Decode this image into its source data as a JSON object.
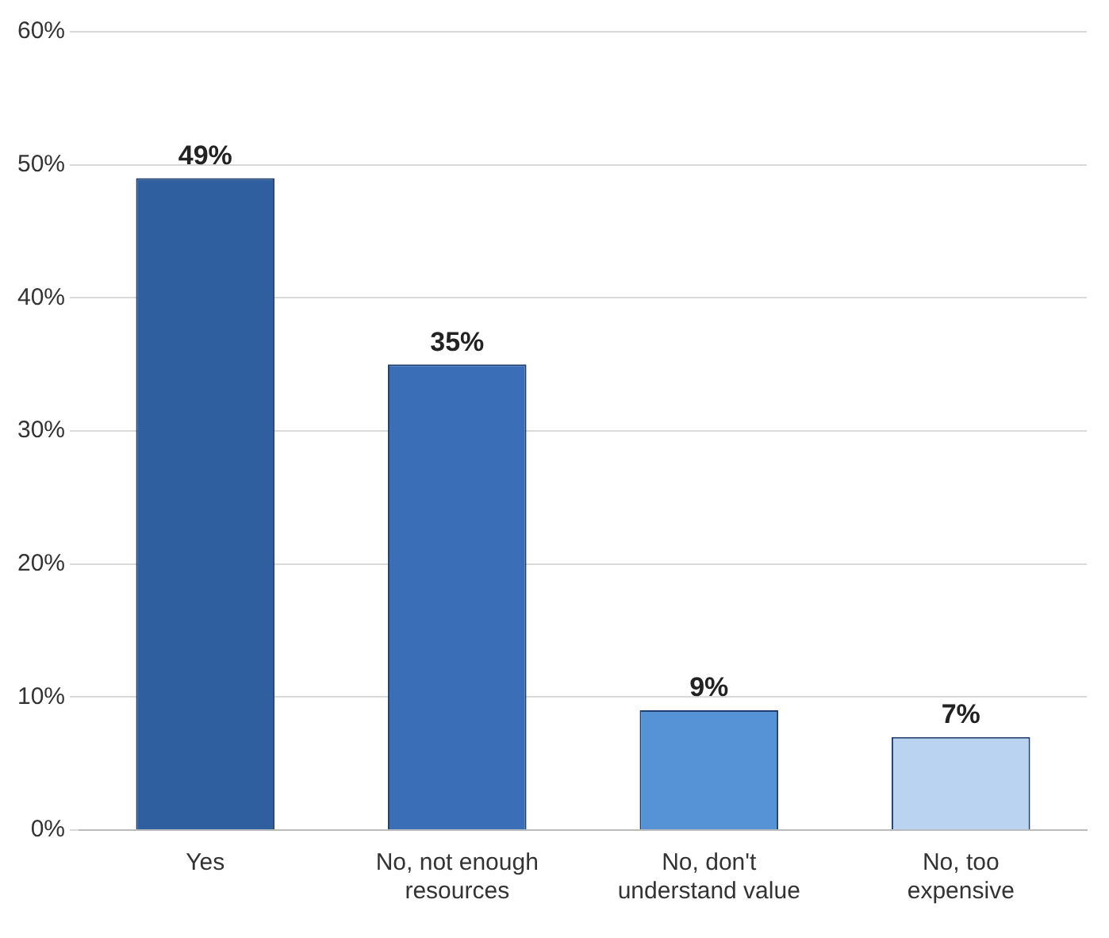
{
  "chart_data": {
    "type": "bar",
    "categories": [
      "Yes",
      "No, not enough resources",
      "No, don't understand value",
      "No, too expensive"
    ],
    "values": [
      49,
      35,
      9,
      7
    ],
    "colors": [
      "#2f5f9e",
      "#3a6fb8",
      "#5593d6",
      "#b9d3f0"
    ],
    "value_labels": [
      "49%",
      "35%",
      "9%",
      "7%"
    ],
    "ylim": [
      0,
      60
    ],
    "yticks": [
      {
        "value": 0,
        "label": "0%"
      },
      {
        "value": 10,
        "label": "10%"
      },
      {
        "value": 20,
        "label": "20%"
      },
      {
        "value": 30,
        "label": "30%"
      },
      {
        "value": 40,
        "label": "40%"
      },
      {
        "value": 50,
        "label": "50%"
      },
      {
        "value": 60,
        "label": "60%"
      }
    ],
    "grid": "y"
  }
}
